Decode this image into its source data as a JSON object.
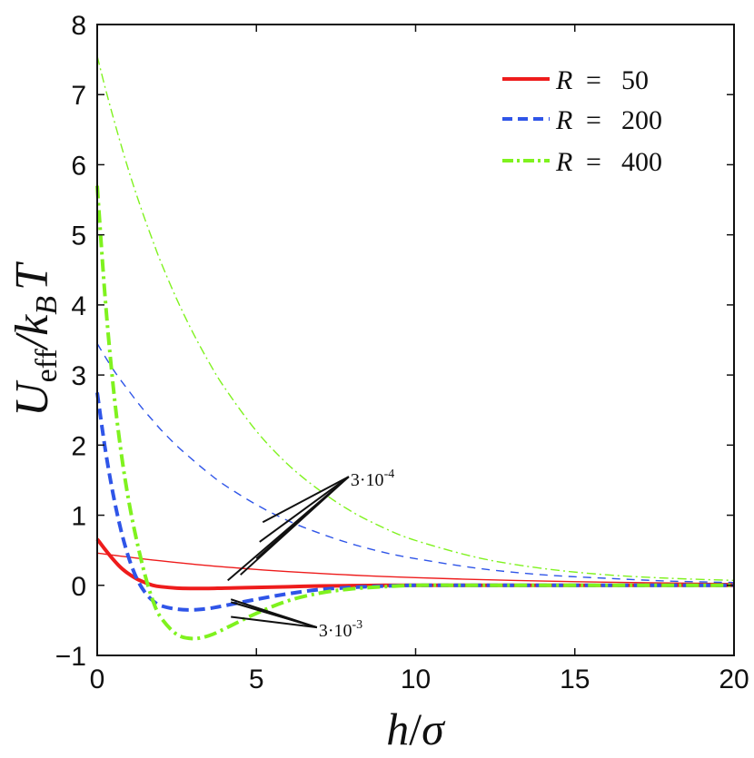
{
  "chart_data": {
    "type": "line",
    "xlabel": "h/σ",
    "ylabel": "Ueff/kBT",
    "ylabel_parts": {
      "main": "U",
      "main_sub": "eff",
      "slash": "/",
      "k": "k",
      "k_sub": "B",
      "t": "T"
    },
    "xlabel_parts": {
      "h": "h",
      "slash": "/",
      "sigma": "σ"
    },
    "xlim": [
      0,
      20
    ],
    "ylim": [
      -1,
      8
    ],
    "xticks": [
      0,
      5,
      10,
      15,
      20
    ],
    "xtick_labels": [
      "0",
      "5",
      "10",
      "15",
      "20"
    ],
    "yticks": [
      -1,
      0,
      1,
      2,
      3,
      4,
      5,
      6,
      7,
      8
    ],
    "ytick_labels": [
      "−1",
      "0",
      "1",
      "2",
      "3",
      "4",
      "5",
      "6",
      "7",
      "8"
    ],
    "grid": false,
    "legend_position": "top-right",
    "colors": {
      "r50": "#ee1c1c",
      "r200": "#2f55e8",
      "r400": "#7ff21e",
      "axis": "#111111"
    },
    "legend": [
      {
        "var": "R",
        "eq": "=",
        "value": "50",
        "series": "r50"
      },
      {
        "var": "R",
        "eq": "=",
        "value": "200",
        "series": "r200"
      },
      {
        "var": "R",
        "eq": "=",
        "value": "400",
        "series": "r400"
      }
    ],
    "x": [
      0,
      0.25,
      0.5,
      0.75,
      1,
      1.25,
      1.5,
      1.75,
      2,
      2.5,
      3,
      3.5,
      4,
      5,
      6,
      7,
      8,
      9,
      10,
      12,
      14,
      16,
      18,
      20
    ],
    "series": [
      {
        "name": "R = 50, 3·10^-4",
        "color_key": "r50",
        "style": "solid",
        "width": "thin",
        "values": [
          0.46,
          0.445,
          0.43,
          0.416,
          0.402,
          0.388,
          0.374,
          0.361,
          0.349,
          0.325,
          0.302,
          0.281,
          0.262,
          0.226,
          0.196,
          0.169,
          0.146,
          0.126,
          0.109,
          0.082,
          0.061,
          0.045,
          0.034,
          0.025
        ]
      },
      {
        "name": "R = 200, 3·10^-4",
        "color_key": "r200",
        "style": "dashed",
        "width": "thin",
        "values": [
          3.45,
          3.26,
          3.08,
          2.92,
          2.77,
          2.62,
          2.48,
          2.35,
          2.22,
          1.99,
          1.79,
          1.6,
          1.43,
          1.15,
          0.92,
          0.74,
          0.59,
          0.47,
          0.38,
          0.24,
          0.15,
          0.1,
          0.06,
          0.04
        ]
      },
      {
        "name": "R = 400, 3·10^-4",
        "color_key": "r400",
        "style": "dashdot",
        "width": "thin",
        "values": [
          7.55,
          7.1,
          6.68,
          6.28,
          5.9,
          5.55,
          5.22,
          4.91,
          4.61,
          4.08,
          3.61,
          3.19,
          2.82,
          2.2,
          1.72,
          1.35,
          1.05,
          0.82,
          0.64,
          0.39,
          0.24,
          0.15,
          0.1,
          0.07
        ]
      },
      {
        "name": "R = 50, 3·10^-3",
        "color_key": "r50",
        "style": "solid",
        "width": "thick",
        "values": [
          0.66,
          0.51,
          0.37,
          0.25,
          0.16,
          0.09,
          0.04,
          0.0,
          -0.02,
          -0.04,
          -0.045,
          -0.045,
          -0.04,
          -0.03,
          -0.02,
          -0.01,
          -0.005,
          0.0,
          0.0,
          0.0,
          0.0,
          0.0,
          0.0,
          0.0
        ]
      },
      {
        "name": "R = 200, 3·10^-3",
        "color_key": "r200",
        "style": "dashed",
        "width": "thick",
        "values": [
          2.75,
          1.95,
          1.3,
          0.78,
          0.38,
          0.09,
          -0.1,
          -0.22,
          -0.29,
          -0.34,
          -0.35,
          -0.33,
          -0.29,
          -0.2,
          -0.12,
          -0.06,
          -0.03,
          -0.01,
          0.0,
          0.0,
          0.0,
          0.0,
          0.0,
          0.0
        ]
      },
      {
        "name": "R = 400, 3·10^-3",
        "color_key": "r400",
        "style": "dashdot",
        "width": "thick",
        "values": [
          5.7,
          4.1,
          2.85,
          1.9,
          1.18,
          0.62,
          0.15,
          -0.22,
          -0.46,
          -0.7,
          -0.76,
          -0.72,
          -0.62,
          -0.4,
          -0.22,
          -0.11,
          -0.05,
          -0.02,
          0.0,
          0.0,
          0.0,
          0.0,
          0.0,
          0.0
        ]
      }
    ],
    "annotations": [
      {
        "text_base": "3·10",
        "exponent": "-4",
        "label_x": 7.9,
        "label_y": 1.55,
        "pointers": [
          {
            "x": 5.2,
            "y": 0.9
          },
          {
            "x": 5.1,
            "y": 0.62
          },
          {
            "x": 5.0,
            "y": 0.38
          },
          {
            "x": 4.5,
            "y": 0.15
          },
          {
            "x": 4.1,
            "y": 0.07
          }
        ]
      },
      {
        "text_base": "3·10",
        "exponent": "-3",
        "label_x": 6.9,
        "label_y": -0.6,
        "pointers": [
          {
            "x": 4.2,
            "y": -0.2
          },
          {
            "x": 4.2,
            "y": -0.24
          },
          {
            "x": 4.3,
            "y": -0.25
          },
          {
            "x": 4.2,
            "y": -0.45
          }
        ]
      }
    ]
  }
}
